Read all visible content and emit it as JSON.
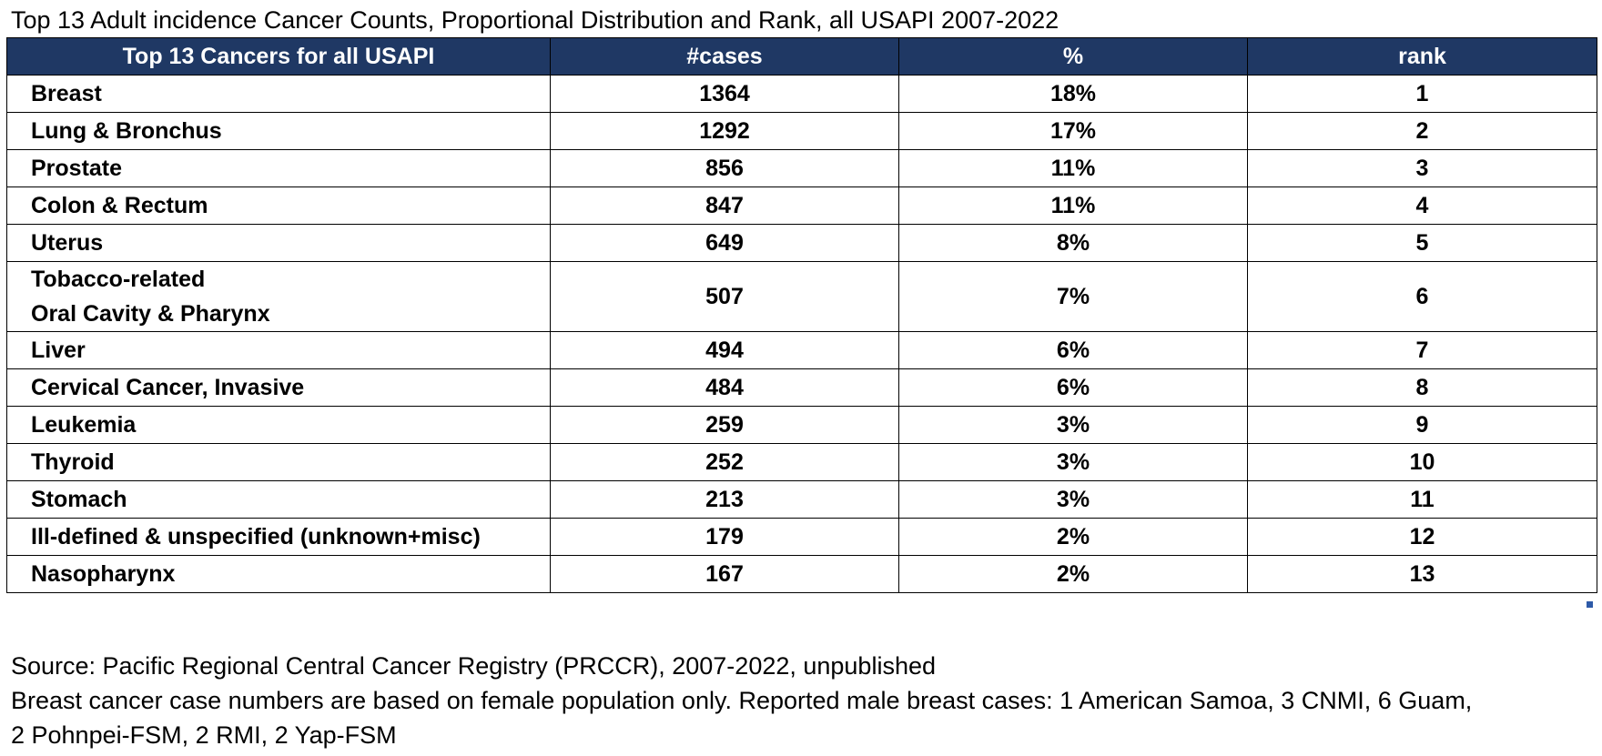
{
  "title": "Top 13 Adult incidence Cancer Counts, Proportional Distribution and Rank, all USAPI 2007-2022",
  "table": {
    "headers": [
      "Top 13 Cancers for all USAPI",
      "#cases",
      "%",
      "rank"
    ],
    "rows": [
      {
        "name": [
          "Breast"
        ],
        "cases": "1364",
        "pct": "18%",
        "rank": "1"
      },
      {
        "name": [
          "Lung & Bronchus"
        ],
        "cases": "1292",
        "pct": "17%",
        "rank": "2"
      },
      {
        "name": [
          "Prostate"
        ],
        "cases": "856",
        "pct": "11%",
        "rank": "3"
      },
      {
        "name": [
          "Colon & Rectum"
        ],
        "cases": "847",
        "pct": "11%",
        "rank": "4"
      },
      {
        "name": [
          "Uterus"
        ],
        "cases": "649",
        "pct": "8%",
        "rank": "5"
      },
      {
        "name": [
          "Tobacco-related",
          "Oral Cavity & Pharynx"
        ],
        "cases": "507",
        "pct": "7%",
        "rank": "6"
      },
      {
        "name": [
          "Liver"
        ],
        "cases": "494",
        "pct": "6%",
        "rank": "7"
      },
      {
        "name": [
          "Cervical Cancer, Invasive"
        ],
        "cases": "484",
        "pct": "6%",
        "rank": "8"
      },
      {
        "name": [
          "Leukemia"
        ],
        "cases": "259",
        "pct": "3%",
        "rank": "9"
      },
      {
        "name": [
          "Thyroid"
        ],
        "cases": "252",
        "pct": "3%",
        "rank": "10"
      },
      {
        "name": [
          "Stomach"
        ],
        "cases": "213",
        "pct": "3%",
        "rank": "11"
      },
      {
        "name": [
          "Ill-defined & unspecified (unknown+misc)"
        ],
        "cases": "179",
        "pct": "2%",
        "rank": "12"
      },
      {
        "name": [
          "Nasopharynx"
        ],
        "cases": "167",
        "pct": "2%",
        "rank": "13"
      }
    ]
  },
  "notes": {
    "source": "Source: Pacific Regional Central Cancer Registry (PRCCR), 2007-2022, unpublished",
    "footnote_line1": "Breast cancer case numbers are based on female population only. Reported male breast cases: 1 American Samoa, 3 CNMI, 6 Guam,",
    "footnote_line2": "2 Pohnpei-FSM, 2 RMI, 2 Yap-FSM"
  },
  "colors": {
    "header_bg": "#1f3864",
    "header_text": "#ffffff",
    "border": "#000000"
  }
}
